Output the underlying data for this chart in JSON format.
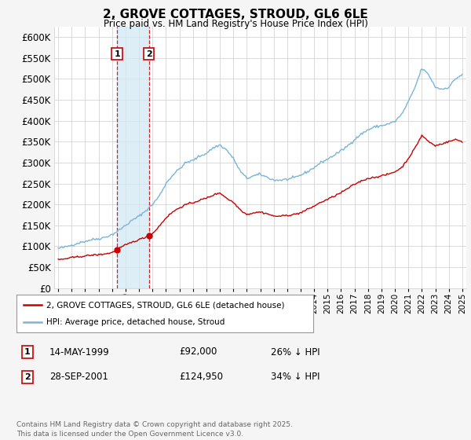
{
  "title": "2, GROVE COTTAGES, STROUD, GL6 6LE",
  "subtitle": "Price paid vs. HM Land Registry's House Price Index (HPI)",
  "background_color": "#f5f5f5",
  "plot_bg_color": "#ffffff",
  "grid_color": "#cccccc",
  "hpi_color": "#7ab4d8",
  "sale_color": "#cc0000",
  "shade_color": "#d0e8f5",
  "ylim": [
    0,
    625000
  ],
  "yticks": [
    0,
    50000,
    100000,
    150000,
    200000,
    250000,
    300000,
    350000,
    400000,
    450000,
    500000,
    550000,
    600000
  ],
  "xlim_start": 1994.7,
  "xlim_end": 2025.3,
  "sale_dates": [
    1999.37,
    2001.74
  ],
  "sale_prices": [
    92000,
    124950
  ],
  "sale_labels": [
    "1",
    "2"
  ],
  "transaction_rows": [
    {
      "label": "1",
      "date": "14-MAY-1999",
      "price": "£92,000",
      "hpi": "26% ↓ HPI"
    },
    {
      "label": "2",
      "date": "28-SEP-2001",
      "price": "£124,950",
      "hpi": "34% ↓ HPI"
    }
  ],
  "legend_entries": [
    "2, GROVE COTTAGES, STROUD, GL6 6LE (detached house)",
    "HPI: Average price, detached house, Stroud"
  ],
  "footer": "Contains HM Land Registry data © Crown copyright and database right 2025.\nThis data is licensed under the Open Government Licence v3.0.",
  "xtick_years": [
    1995,
    1996,
    1997,
    1998,
    1999,
    2000,
    2001,
    2002,
    2003,
    2004,
    2005,
    2006,
    2007,
    2008,
    2009,
    2010,
    2011,
    2012,
    2013,
    2014,
    2015,
    2016,
    2017,
    2018,
    2019,
    2020,
    2021,
    2022,
    2023,
    2024,
    2025
  ],
  "hpi_key_x": [
    1995.0,
    1995.5,
    1996.0,
    1996.5,
    1997.0,
    1997.5,
    1998.0,
    1998.5,
    1999.0,
    1999.5,
    2000.0,
    2000.5,
    2001.0,
    2001.5,
    2002.0,
    2002.5,
    2003.0,
    2003.5,
    2004.0,
    2004.5,
    2005.0,
    2005.5,
    2006.0,
    2006.5,
    2007.0,
    2007.5,
    2008.0,
    2008.5,
    2009.0,
    2009.5,
    2010.0,
    2010.5,
    2011.0,
    2011.5,
    2012.0,
    2012.5,
    2013.0,
    2013.5,
    2014.0,
    2014.5,
    2015.0,
    2015.5,
    2016.0,
    2016.5,
    2017.0,
    2017.5,
    2018.0,
    2018.5,
    2019.0,
    2019.5,
    2020.0,
    2020.5,
    2021.0,
    2021.5,
    2022.0,
    2022.5,
    2023.0,
    2023.5,
    2024.0,
    2024.5,
    2025.0
  ],
  "hpi_key_y": [
    95000,
    98000,
    103000,
    108000,
    112000,
    116000,
    118000,
    122000,
    128000,
    138000,
    150000,
    162000,
    172000,
    185000,
    200000,
    220000,
    250000,
    270000,
    285000,
    300000,
    305000,
    315000,
    322000,
    335000,
    342000,
    330000,
    310000,
    280000,
    262000,
    268000,
    272000,
    265000,
    258000,
    258000,
    260000,
    263000,
    270000,
    278000,
    288000,
    300000,
    308000,
    318000,
    328000,
    340000,
    355000,
    368000,
    378000,
    385000,
    388000,
    392000,
    398000,
    415000,
    445000,
    480000,
    525000,
    510000,
    480000,
    475000,
    480000,
    500000,
    510000
  ],
  "red_key_x": [
    1995.0,
    1995.5,
    1996.0,
    1996.5,
    1997.0,
    1997.5,
    1998.0,
    1998.5,
    1999.0,
    1999.37,
    1999.5,
    2000.0,
    2000.5,
    2001.0,
    2001.5,
    2001.74,
    2002.0,
    2002.5,
    2003.0,
    2003.5,
    2004.0,
    2004.5,
    2005.0,
    2005.5,
    2006.0,
    2006.5,
    2007.0,
    2007.5,
    2008.0,
    2008.5,
    2009.0,
    2009.5,
    2010.0,
    2010.5,
    2011.0,
    2011.5,
    2012.0,
    2012.5,
    2013.0,
    2013.5,
    2014.0,
    2014.5,
    2015.0,
    2015.5,
    2016.0,
    2016.5,
    2017.0,
    2017.5,
    2018.0,
    2018.5,
    2019.0,
    2019.5,
    2020.0,
    2020.5,
    2021.0,
    2021.5,
    2022.0,
    2022.5,
    2023.0,
    2023.5,
    2024.0,
    2024.5,
    2025.0
  ],
  "red_key_y": [
    68000,
    70000,
    73000,
    75000,
    77000,
    79000,
    80000,
    82000,
    85000,
    92000,
    95000,
    103000,
    110000,
    116000,
    122000,
    124950,
    130000,
    148000,
    168000,
    182000,
    192000,
    200000,
    204000,
    210000,
    215000,
    222000,
    228000,
    215000,
    205000,
    188000,
    176000,
    180000,
    182000,
    178000,
    172000,
    172000,
    174000,
    176000,
    180000,
    188000,
    196000,
    205000,
    212000,
    220000,
    228000,
    238000,
    248000,
    256000,
    262000,
    265000,
    268000,
    272000,
    278000,
    288000,
    310000,
    335000,
    365000,
    350000,
    340000,
    345000,
    350000,
    355000,
    350000
  ]
}
